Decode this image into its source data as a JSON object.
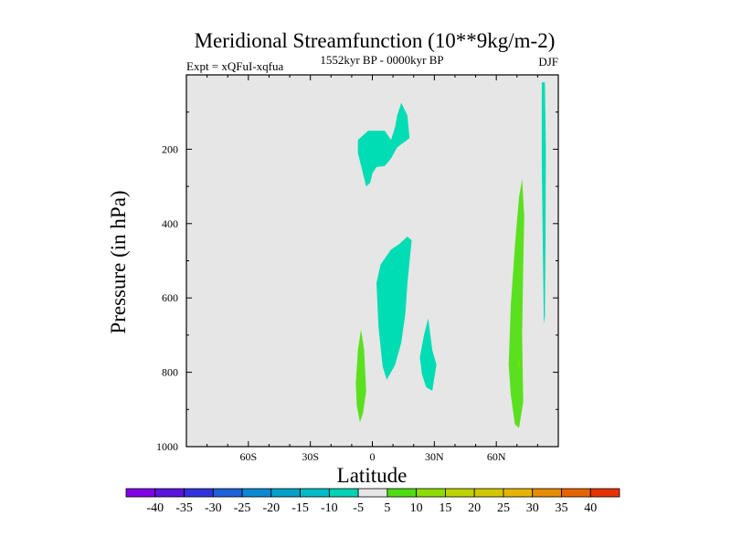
{
  "chart_data": {
    "type": "contour",
    "title": "Meridional Streamfunction (10**9kg/m-2)",
    "subtitle_left": "Expt = xQFuI-xqfua",
    "subtitle_center": "1552kyr BP - 0000kyr BP",
    "subtitle_right": "DJF",
    "xlabel": "Latitude",
    "ylabel": "Pressure (in hPa)",
    "xlim": [
      -90,
      90
    ],
    "ylim": [
      1000,
      0
    ],
    "x_ticks": [
      {
        "value": -60,
        "label": "60S"
      },
      {
        "value": -30,
        "label": "30S"
      },
      {
        "value": 0,
        "label": "0"
      },
      {
        "value": 30,
        "label": "30N"
      },
      {
        "value": 60,
        "label": "60N"
      }
    ],
    "y_ticks": [
      {
        "value": 200,
        "label": "200"
      },
      {
        "value": 400,
        "label": "400"
      },
      {
        "value": 600,
        "label": "600"
      },
      {
        "value": 800,
        "label": "800"
      },
      {
        "value": 1000,
        "label": "1000"
      }
    ],
    "background_color": "#e6e6e6",
    "regions": [
      {
        "name": "neg-upper",
        "level": "-10 to -5",
        "color": "#00dcb4",
        "points": [
          [
            -7,
            175
          ],
          [
            -2,
            150
          ],
          [
            6,
            150
          ],
          [
            9,
            175
          ],
          [
            11,
            140
          ],
          [
            12,
            110
          ],
          [
            14,
            75
          ],
          [
            17,
            110
          ],
          [
            18,
            170
          ],
          [
            12,
            195
          ],
          [
            9,
            225
          ],
          [
            6,
            245
          ],
          [
            2,
            248
          ],
          [
            0,
            265
          ],
          [
            -1,
            290
          ],
          [
            -3,
            300
          ],
          [
            -5,
            255
          ],
          [
            -7,
            210
          ]
        ]
      },
      {
        "name": "neg-mid",
        "level": "-10 to -5",
        "color": "#00dcb4",
        "points": [
          [
            2,
            560
          ],
          [
            4,
            510
          ],
          [
            9,
            470
          ],
          [
            13,
            455
          ],
          [
            17,
            435
          ],
          [
            19,
            445
          ],
          [
            17,
            560
          ],
          [
            16,
            640
          ],
          [
            14,
            720
          ],
          [
            11,
            780
          ],
          [
            7,
            820
          ],
          [
            5,
            785
          ],
          [
            3,
            680
          ]
        ]
      },
      {
        "name": "neg-lower",
        "level": "-10 to -5",
        "color": "#00dcb4",
        "points": [
          [
            23,
            760
          ],
          [
            25,
            700
          ],
          [
            27,
            655
          ],
          [
            29,
            740
          ],
          [
            31,
            780
          ],
          [
            29,
            850
          ],
          [
            26,
            840
          ],
          [
            24,
            805
          ]
        ]
      },
      {
        "name": "neg-polar",
        "level": "-10 to -5",
        "color": "#00dcb4",
        "points": [
          [
            82,
            20
          ],
          [
            83.5,
            20
          ],
          [
            84,
            200
          ],
          [
            83.8,
            440
          ],
          [
            83.5,
            650
          ],
          [
            83,
            670
          ],
          [
            82.5,
            450
          ],
          [
            82,
            230
          ]
        ]
      },
      {
        "name": "pos-eq",
        "level": "5 to 10",
        "color": "#5ae01e",
        "points": [
          [
            -8,
            830
          ],
          [
            -7,
            740
          ],
          [
            -5.5,
            685
          ],
          [
            -4,
            740
          ],
          [
            -3,
            850
          ],
          [
            -4.5,
            910
          ],
          [
            -6,
            935
          ],
          [
            -7.5,
            890
          ]
        ]
      },
      {
        "name": "pos-high",
        "level": "5 to 10",
        "color": "#5ae01e",
        "points": [
          [
            66,
            780
          ],
          [
            67,
            620
          ],
          [
            69,
            460
          ],
          [
            71,
            330
          ],
          [
            72.5,
            280
          ],
          [
            73.5,
            380
          ],
          [
            73,
            520
          ],
          [
            72.5,
            700
          ],
          [
            73,
            880
          ],
          [
            71,
            950
          ],
          [
            69,
            940
          ],
          [
            67,
            860
          ]
        ]
      },
      {
        "name": "pos-high-core",
        "level": "10 to 15",
        "color": "#8ce000",
        "points": [
          [
            70.6,
            770
          ],
          [
            71.3,
            770
          ],
          [
            71.1,
            790
          ],
          [
            70.7,
            790
          ]
        ]
      }
    ],
    "colorbar": {
      "labels": [
        "-40",
        "-35",
        "-30",
        "-25",
        "-20",
        "-15",
        "-10",
        "-5",
        "5",
        "10",
        "15",
        "20",
        "25",
        "30",
        "35",
        "40"
      ],
      "colors": [
        "#8000e6",
        "#5a14dc",
        "#3232dc",
        "#1e60d8",
        "#0a88d2",
        "#00a0c8",
        "#00bcc8",
        "#00d2b4",
        "#e6e6e6",
        "#50dc14",
        "#8cdc00",
        "#bed200",
        "#d2c800",
        "#e6b400",
        "#e68c00",
        "#e66400",
        "#e63200"
      ]
    }
  }
}
